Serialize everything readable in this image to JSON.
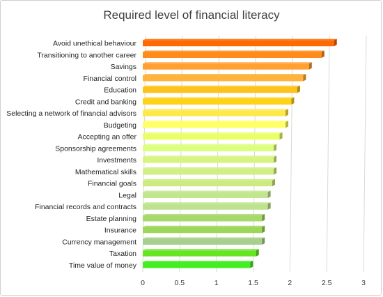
{
  "chart_data": {
    "type": "bar",
    "orientation": "horizontal",
    "title": "Required level of financial literacy",
    "categories": [
      "Avoid unethical behaviour",
      "Transitioning to another career",
      "Savings",
      "Financial control",
      "Education",
      "Credit and banking",
      "Selecting a network of financial advisors",
      "Budgeting",
      "Accepting an offer",
      "Sponsorship agreements",
      "Investments",
      "Mathematical skills",
      "Financial goals",
      "Legal",
      "Financial records and contracts",
      "Estate planning",
      "Insurance",
      "Currency management",
      "Taxation",
      "Time value of money"
    ],
    "values": [
      2.6,
      2.43,
      2.26,
      2.18,
      2.1,
      2.02,
      1.94,
      1.94,
      1.86,
      1.78,
      1.78,
      1.78,
      1.76,
      1.7,
      1.7,
      1.62,
      1.62,
      1.62,
      1.54,
      1.46
    ],
    "colors": [
      "#ff6a00",
      "#ff8c1a",
      "#ffa030",
      "#ffb23c",
      "#ffc21a",
      "#ffd21a",
      "#ffe84a",
      "#ffff66",
      "#eaff66",
      "#ddff80",
      "#d6f580",
      "#d2ef85",
      "#ccea80",
      "#c2e690",
      "#bde38f",
      "#a6d96a",
      "#9ed65a",
      "#a8d08d",
      "#66e622",
      "#44ee22"
    ],
    "xlim": [
      0,
      3
    ],
    "xticks": [
      "0",
      "0.5",
      "1",
      "1.5",
      "2",
      "2.5",
      "3"
    ],
    "grid": true,
    "legend": "none"
  }
}
